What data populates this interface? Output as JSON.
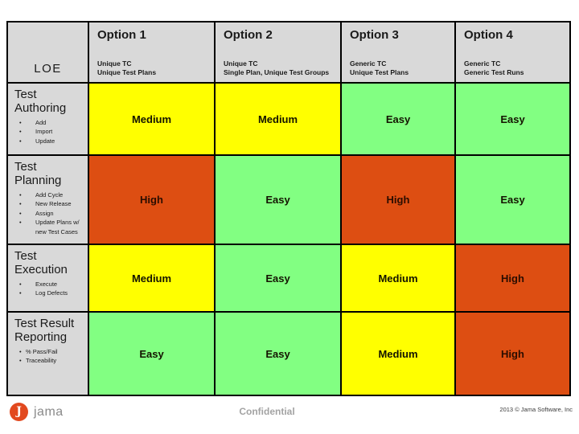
{
  "table": {
    "corner_label": "LOE",
    "columns": [
      {
        "title": "Option 1",
        "subtitle_lines": [
          "Unique TC",
          "Unique Test Plans"
        ]
      },
      {
        "title": "Option 2",
        "subtitle_lines": [
          "Unique TC",
          "Single Plan, Unique Test Groups"
        ]
      },
      {
        "title": "Option 3",
        "subtitle_lines": [
          "Generic TC",
          "Unique Test Plans"
        ]
      },
      {
        "title": "Option 4",
        "subtitle_lines": [
          "Generic TC",
          "Generic Test Runs"
        ]
      }
    ],
    "rows": [
      {
        "title": "Test Authoring",
        "bullets": [
          "Add",
          "Import",
          "Update"
        ],
        "cells": [
          {
            "label": "Medium",
            "level": "medium"
          },
          {
            "label": "Medium",
            "level": "medium"
          },
          {
            "label": "Easy",
            "level": "easy"
          },
          {
            "label": "Easy",
            "level": "easy"
          }
        ]
      },
      {
        "title": "Test Planning",
        "bullets": [
          "Add Cycle",
          "New Release",
          "Assign",
          "Update Plans w/ new Test Cases"
        ],
        "cells": [
          {
            "label": "High",
            "level": "high"
          },
          {
            "label": "Easy",
            "level": "easy"
          },
          {
            "label": "High",
            "level": "high"
          },
          {
            "label": "Easy",
            "level": "easy"
          }
        ]
      },
      {
        "title": "Test Execution",
        "bullets": [
          "Execute",
          "Log Defects"
        ],
        "cells": [
          {
            "label": "Medium",
            "level": "medium"
          },
          {
            "label": "Easy",
            "level": "easy"
          },
          {
            "label": "Medium",
            "level": "medium"
          },
          {
            "label": "High",
            "level": "high"
          }
        ]
      },
      {
        "title": "Test Result Reporting",
        "bullets": [
          "% Pass/Fail",
          "Traceability"
        ],
        "cells": [
          {
            "label": "Easy",
            "level": "easy"
          },
          {
            "label": "Easy",
            "level": "easy"
          },
          {
            "label": "Medium",
            "level": "medium"
          },
          {
            "label": "High",
            "level": "high"
          }
        ]
      }
    ]
  },
  "colors": {
    "easy": "#82FF82",
    "medium": "#FFFF00",
    "high": "#DD4E12",
    "header_gray": "#D9D9D9",
    "grid_border": "#000000",
    "brand_orange": "#E2491F"
  },
  "footer": {
    "logo_letter": "J",
    "logo_word": "jama",
    "confidential": "Confidential",
    "copyright": "2013 © Jama Software, Inc"
  }
}
